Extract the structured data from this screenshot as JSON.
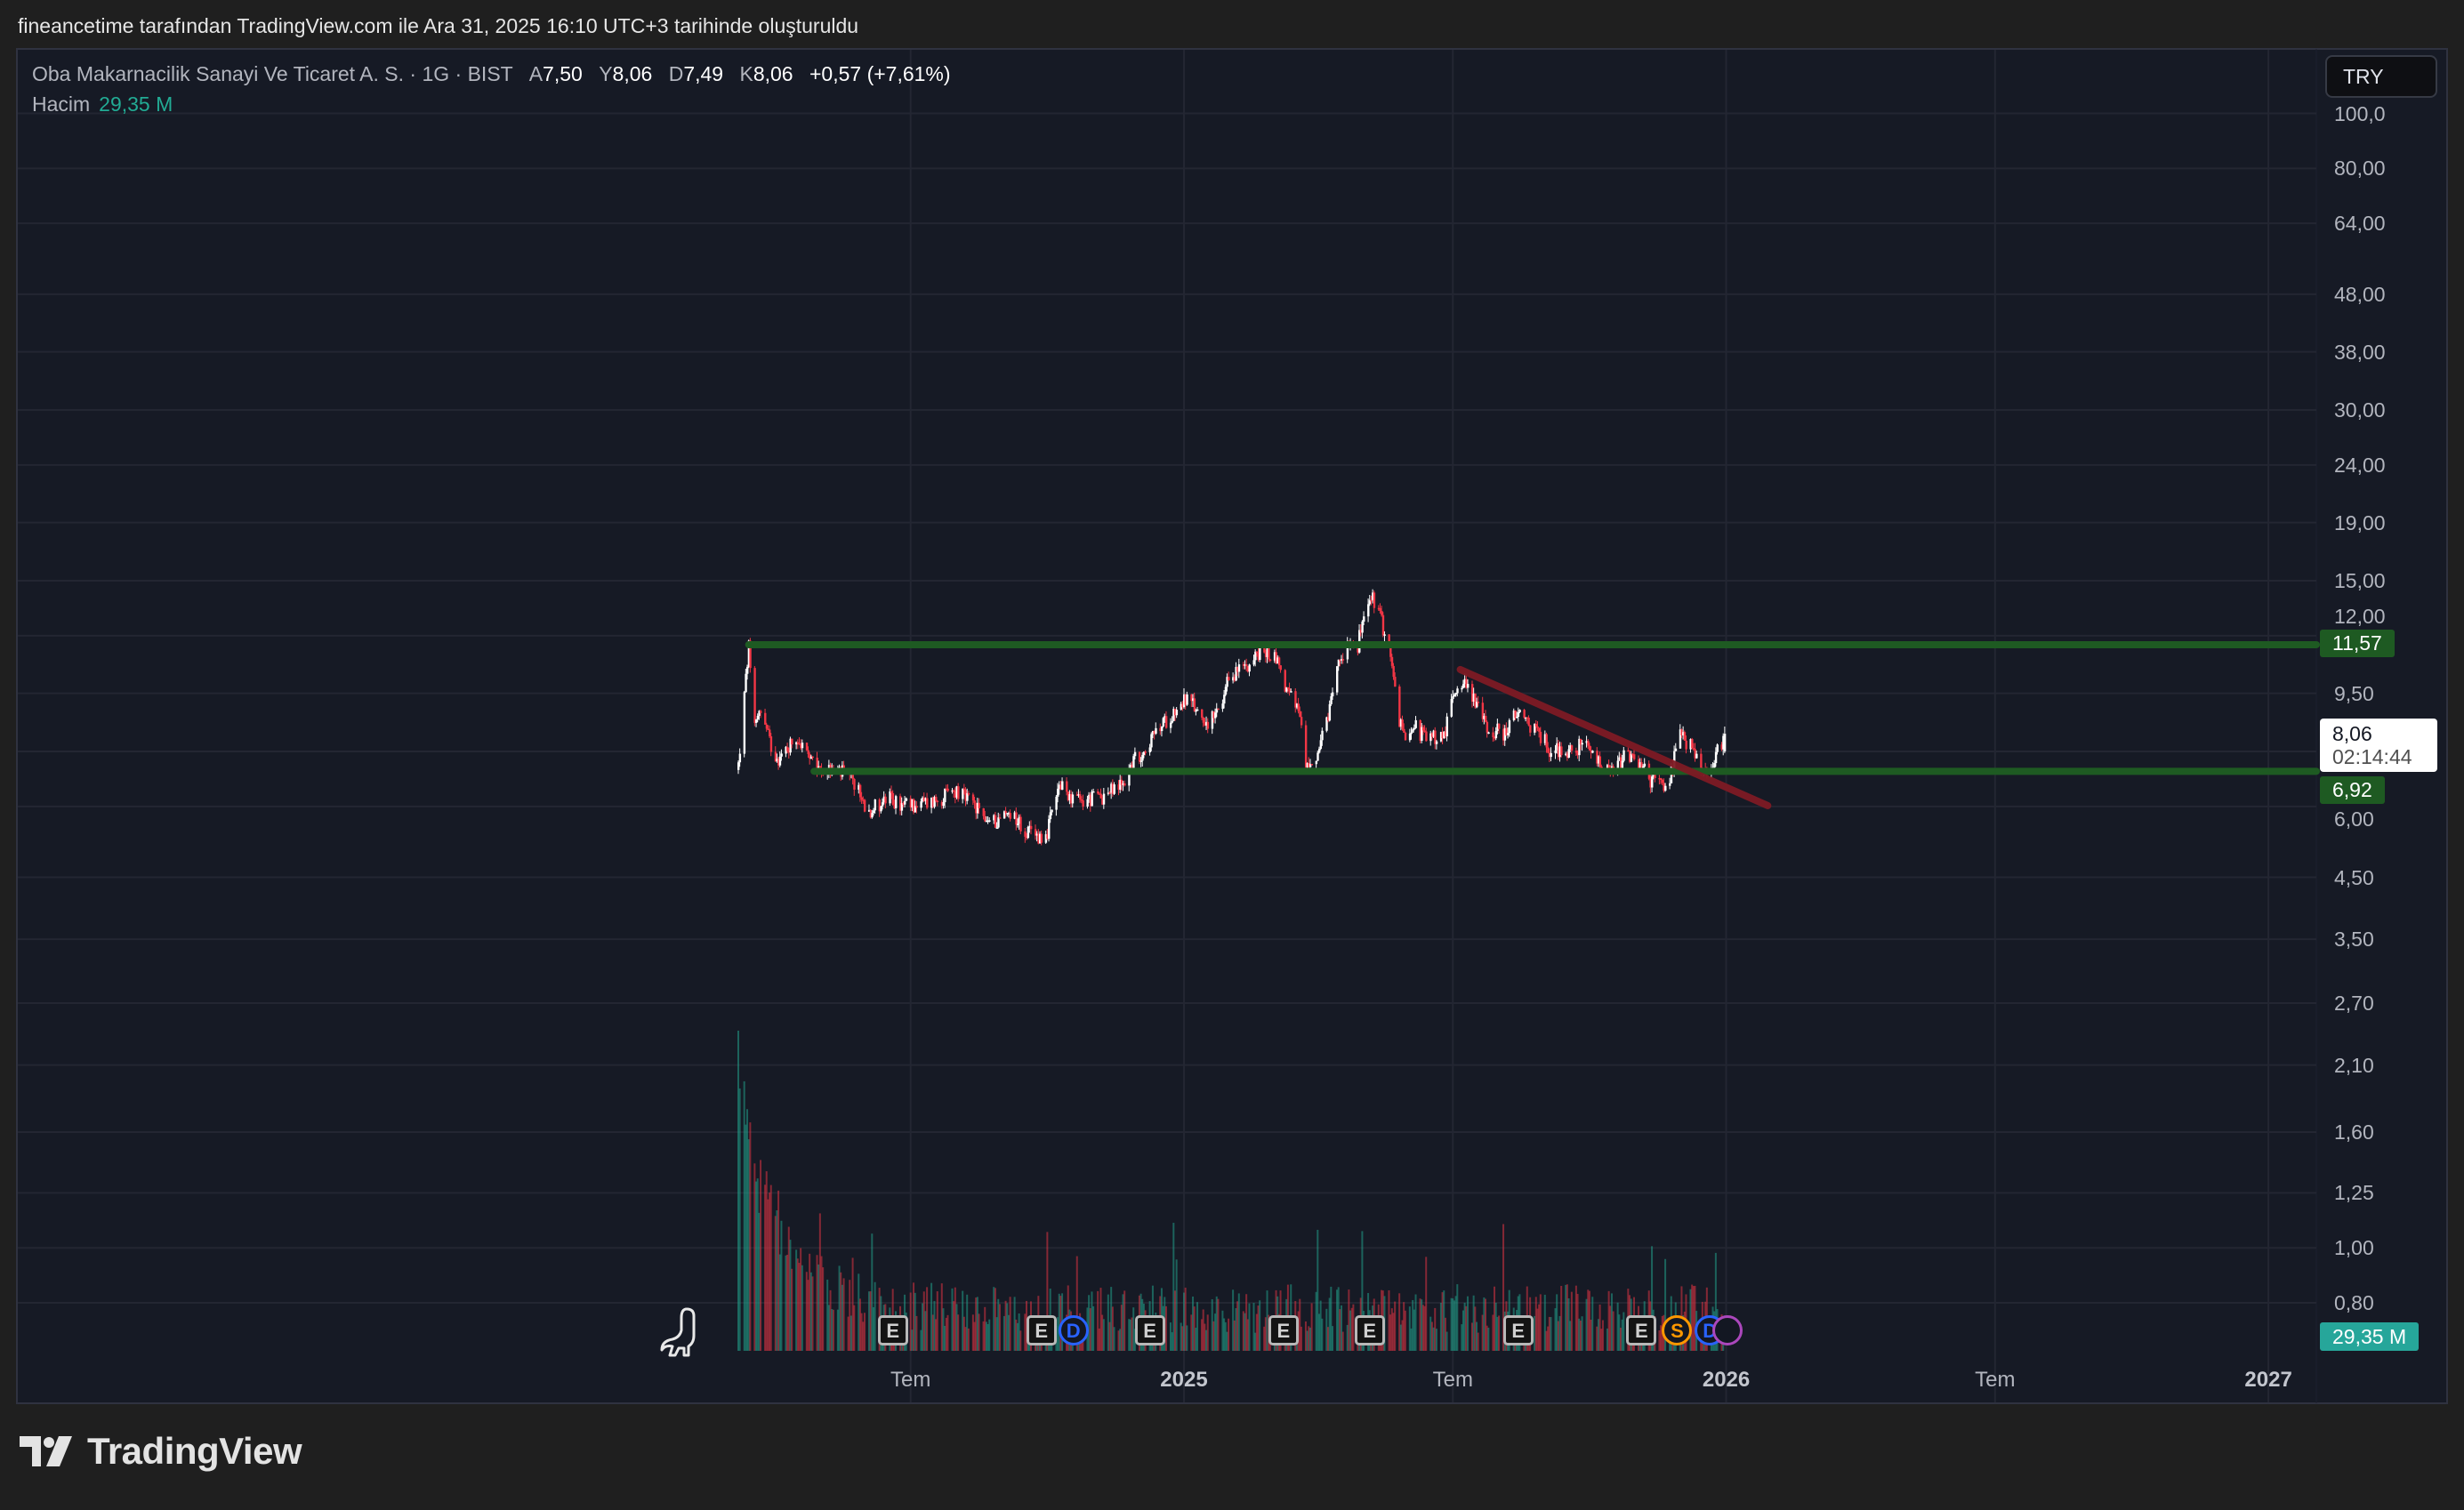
{
  "caption": "fineancetime tarafından TradingView.com ile Ara 31, 2025 16:10 UTC+3 tarihinde oluşturuldu",
  "legend": {
    "symbol": "Oba Makarnacilik Sanayi Ve Ticaret A. S. · 1G · BIST",
    "open_label": "A",
    "open": "7,50",
    "high_label": "Y",
    "high": "8,06",
    "low_label": "D",
    "low": "7,49",
    "close_label": "K",
    "close": "8,06",
    "change": "+0,57 (+7,61%)",
    "volume_label": "Hacim",
    "volume": "29,35 M"
  },
  "currency_button": "TRY",
  "badges": {
    "upper_level": "11,57",
    "last_price": "8,06",
    "countdown": "02:14:44",
    "lower_level": "6,92",
    "volume": "29,35 M"
  },
  "colors": {
    "background": "#161a25",
    "up_candle": "#ffffff",
    "down_candle": "#f23645",
    "level_line": "#1e5a22",
    "trend_line": "#7d1a24",
    "volume_up": "#22ab94",
    "volume_down": "#f23645"
  },
  "chart_data": {
    "type": "candlestick",
    "y_scale": "log",
    "price_ticks": [
      {
        "value": 100,
        "label": "100,0"
      },
      {
        "value": 80,
        "label": "80,00"
      },
      {
        "value": 64,
        "label": "64,00"
      },
      {
        "value": 48,
        "label": "48,00"
      },
      {
        "value": 38,
        "label": "38,00"
      },
      {
        "value": 30,
        "label": "30,00"
      },
      {
        "value": 24,
        "label": "24,00"
      },
      {
        "value": 19,
        "label": "19,00"
      },
      {
        "value": 15,
        "label": "15,00"
      },
      {
        "value": 12,
        "label": "12,00"
      },
      {
        "value": 9.5,
        "label": "9,50"
      },
      {
        "value": 7.5,
        "label": ""
      },
      {
        "value": 6,
        "label": "6,00"
      },
      {
        "value": 4.5,
        "label": "4,50"
      },
      {
        "value": 3.5,
        "label": "3,50"
      },
      {
        "value": 2.7,
        "label": "2,70"
      },
      {
        "value": 2.1,
        "label": "2,10"
      },
      {
        "value": 1.6,
        "label": "1,60"
      },
      {
        "value": 1.25,
        "label": "1,25"
      },
      {
        "value": 1.0,
        "label": "1,00"
      },
      {
        "value": 0.8,
        "label": "0,80"
      }
    ],
    "time_ticks": [
      {
        "date": "2024-07-01",
        "label": "Tem",
        "bold": false
      },
      {
        "date": "2025-01-01",
        "label": "2025",
        "bold": true
      },
      {
        "date": "2025-07-01",
        "label": "Tem",
        "bold": false
      },
      {
        "date": "2026-01-01",
        "label": "2026",
        "bold": true
      },
      {
        "date": "2026-07-01",
        "label": "Tem",
        "bold": false
      },
      {
        "date": "2027-01-01",
        "label": "2027",
        "bold": true
      }
    ],
    "price_path": [
      [
        "2024-03-07",
        7.1
      ],
      [
        "2024-03-14",
        11.5
      ],
      [
        "2024-03-17",
        8.0
      ],
      [
        "2024-03-21",
        9.0
      ],
      [
        "2024-03-30",
        7.5
      ],
      [
        "2024-04-04",
        7.3
      ],
      [
        "2024-04-15",
        8.0
      ],
      [
        "2024-04-27",
        7.0
      ],
      [
        "2024-05-15",
        6.9
      ],
      [
        "2024-05-24",
        6.6
      ],
      [
        "2024-06-02",
        5.9
      ],
      [
        "2024-06-16",
        6.2
      ],
      [
        "2024-06-25",
        6.0
      ],
      [
        "2024-07-14",
        6.1
      ],
      [
        "2024-08-01",
        6.4
      ],
      [
        "2024-08-10",
        6.1
      ],
      [
        "2024-08-24",
        5.6
      ],
      [
        "2024-09-07",
        5.9
      ],
      [
        "2024-09-16",
        5.4
      ],
      [
        "2024-09-30",
        5.3
      ],
      [
        "2024-10-09",
        6.5
      ],
      [
        "2024-10-23",
        6.1
      ],
      [
        "2024-11-10",
        6.3
      ],
      [
        "2024-11-21",
        6.6
      ],
      [
        "2024-11-28",
        7.2
      ],
      [
        "2024-12-12",
        8.0
      ],
      [
        "2024-12-21",
        8.6
      ],
      [
        "2025-01-02",
        9.3
      ],
      [
        "2025-01-18",
        8.4
      ],
      [
        "2025-01-27",
        9.0
      ],
      [
        "2025-01-31",
        10.1
      ],
      [
        "2025-02-14",
        10.8
      ],
      [
        "2025-02-23",
        11.3
      ],
      [
        "2025-03-04",
        11.0
      ],
      [
        "2025-03-11",
        9.6
      ],
      [
        "2025-03-18",
        9.0
      ],
      [
        "2025-03-25",
        7.0
      ],
      [
        "2025-04-01",
        7.5
      ],
      [
        "2025-04-08",
        8.5
      ],
      [
        "2025-04-15",
        10.8
      ],
      [
        "2025-04-22",
        11.9
      ],
      [
        "2025-04-28",
        11.6
      ],
      [
        "2025-05-03",
        13.3
      ],
      [
        "2025-05-08",
        14.0
      ],
      [
        "2025-05-14",
        12.7
      ],
      [
        "2025-05-19",
        11.5
      ],
      [
        "2025-05-24",
        9.1
      ],
      [
        "2025-05-28",
        8.0
      ],
      [
        "2025-06-04",
        8.4
      ],
      [
        "2025-06-13",
        7.9
      ],
      [
        "2025-06-25",
        8.0
      ],
      [
        "2025-07-02",
        9.6
      ],
      [
        "2025-07-06",
        10.1
      ],
      [
        "2025-07-15",
        9.4
      ],
      [
        "2025-07-24",
        8.2
      ],
      [
        "2025-08-05",
        8.1
      ],
      [
        "2025-08-12",
        8.7
      ],
      [
        "2025-08-26",
        8.2
      ],
      [
        "2025-09-04",
        7.6
      ],
      [
        "2025-09-17",
        7.5
      ],
      [
        "2025-09-27",
        7.7
      ],
      [
        "2025-10-06",
        7.2
      ],
      [
        "2025-10-15",
        6.8
      ],
      [
        "2025-10-24",
        7.3
      ],
      [
        "2025-11-02",
        7.2
      ],
      [
        "2025-11-11",
        6.7
      ],
      [
        "2025-11-23",
        6.5
      ],
      [
        "2025-11-30",
        8.0
      ],
      [
        "2025-12-09",
        7.6
      ],
      [
        "2025-12-16",
        7.0
      ],
      [
        "2025-12-20",
        6.7
      ],
      [
        "2025-12-27",
        7.6
      ],
      [
        "2025-12-31",
        8.06
      ]
    ],
    "horizontal_levels": [
      {
        "price": 11.57,
        "from": "2024-03-14"
      },
      {
        "price": 6.92,
        "from": "2024-04-27"
      }
    ],
    "trend_line": {
      "from": [
        "2025-07-06",
        10.46
      ],
      "to": [
        "2026-01-29",
        6.02
      ]
    },
    "events": [
      {
        "type": "E",
        "date": "2024-06-19",
        "letter": "E"
      },
      {
        "type": "E",
        "date": "2024-09-27",
        "letter": "E"
      },
      {
        "type": "D",
        "date": "2024-10-15",
        "letter": "D"
      },
      {
        "type": "E",
        "date": "2024-12-09",
        "letter": "E"
      },
      {
        "type": "E",
        "date": "2025-03-09",
        "letter": "E"
      },
      {
        "type": "E",
        "date": "2025-05-06",
        "letter": "E"
      },
      {
        "type": "E",
        "date": "2025-08-14",
        "letter": "E"
      },
      {
        "type": "E",
        "date": "2025-11-05",
        "letter": "E"
      },
      {
        "type": "S",
        "date": "2025-11-29",
        "letter": "S"
      },
      {
        "type": "D",
        "date": "2025-12-21",
        "letter": "D"
      },
      {
        "type": "P",
        "date": "2026-01-02",
        "letter": ""
      }
    ],
    "grid": true
  },
  "brand": "TradingView"
}
